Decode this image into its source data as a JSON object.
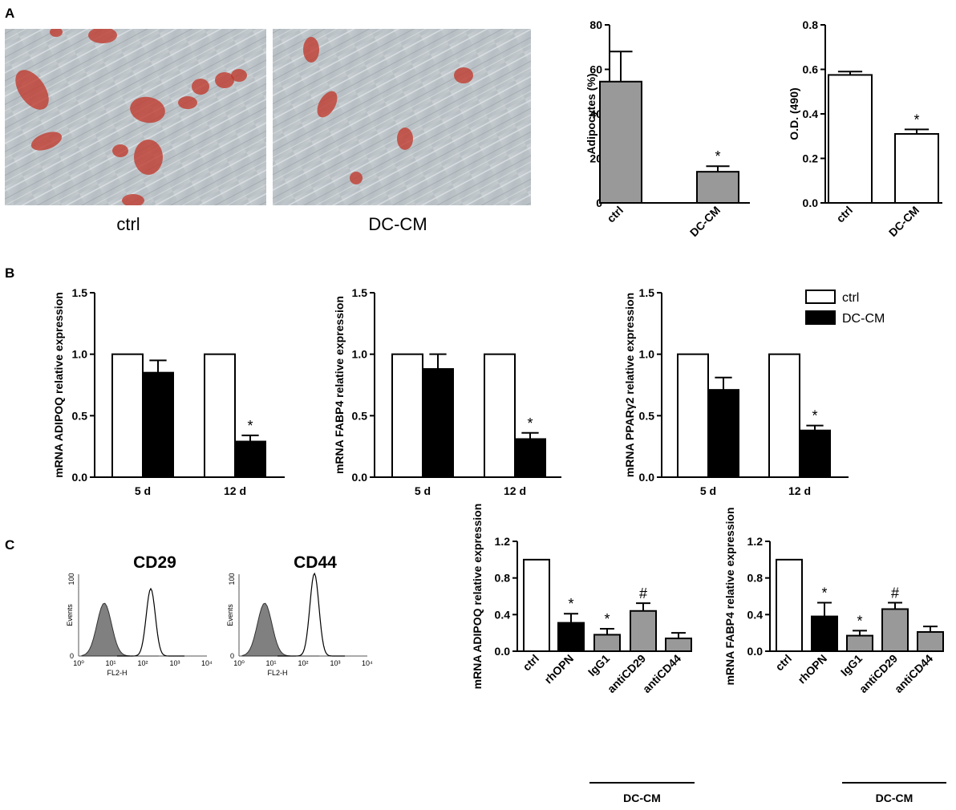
{
  "panel_labels": [
    "A",
    "B",
    "C"
  ],
  "photos": {
    "captions": [
      "ctrl",
      "DC-CM"
    ],
    "stain_color": "#c0392b"
  },
  "histograms": {
    "titles": [
      "CD29",
      "CD44"
    ],
    "ylabel": "Events",
    "xlabel": "FL2-H",
    "y_tick_labels": [
      "0",
      "100"
    ],
    "x_tick_labels": [
      "10⁰",
      "10¹",
      "10²",
      "10³",
      "10⁴"
    ],
    "fill_color": "#808080"
  },
  "legend": {
    "entries": [
      {
        "label": "ctrl",
        "fill": "#ffffff"
      },
      {
        "label": "DC-CM",
        "fill": "#000000"
      }
    ]
  },
  "chart_data": [
    {
      "id": "A1",
      "type": "bar",
      "categories": [
        "ctrl",
        "DC-CM"
      ],
      "values": [
        54.5,
        14
      ],
      "errors": [
        13.5,
        2.5
      ],
      "annotations": [
        "",
        "*"
      ],
      "fills": [
        "#999999",
        "#999999"
      ],
      "ylabel": "Adipocytes (%)",
      "ylim": [
        0,
        80
      ],
      "yticks": [
        "0",
        "20",
        "40",
        "60",
        "80"
      ]
    },
    {
      "id": "A2",
      "type": "bar",
      "categories": [
        "ctrl",
        "DC-CM"
      ],
      "values": [
        0.575,
        0.31
      ],
      "errors": [
        0.015,
        0.02
      ],
      "annotations": [
        "",
        "*"
      ],
      "fills": [
        "#ffffff",
        "#ffffff"
      ],
      "ylabel": "O.D. (490)",
      "ylim": [
        0,
        0.8
      ],
      "yticks": [
        "0.0",
        "0.2",
        "0.4",
        "0.6",
        "0.8"
      ]
    },
    {
      "id": "B1",
      "type": "bar",
      "categories": [
        "5 d",
        "12 d"
      ],
      "series": [
        {
          "name": "ctrl",
          "values": [
            1.0,
            1.0
          ],
          "errors": [
            0,
            0
          ],
          "annotations": [
            "",
            ""
          ]
        },
        {
          "name": "DC-CM",
          "values": [
            0.85,
            0.29
          ],
          "errors": [
            0.1,
            0.05
          ],
          "annotations": [
            "",
            "*"
          ]
        }
      ],
      "ylabel": "mRNA ADIPOQ relative expression",
      "ylim": [
        0,
        1.5
      ],
      "yticks": [
        "0.0",
        "0.5",
        "1.0",
        "1.5"
      ]
    },
    {
      "id": "B2",
      "type": "bar",
      "categories": [
        "5 d",
        "12 d"
      ],
      "series": [
        {
          "name": "ctrl",
          "values": [
            1.0,
            1.0
          ],
          "errors": [
            0,
            0
          ],
          "annotations": [
            "",
            ""
          ]
        },
        {
          "name": "DC-CM",
          "values": [
            0.88,
            0.31
          ],
          "errors": [
            0.12,
            0.05
          ],
          "annotations": [
            "",
            "*"
          ]
        }
      ],
      "ylabel": "mRNA FABP4 relative expression",
      "ylim": [
        0,
        1.5
      ],
      "yticks": [
        "0.0",
        "0.5",
        "1.0",
        "1.5"
      ]
    },
    {
      "id": "B3",
      "type": "bar",
      "categories": [
        "5 d",
        "12 d"
      ],
      "series": [
        {
          "name": "ctrl",
          "values": [
            1.0,
            1.0
          ],
          "errors": [
            0,
            0
          ],
          "annotations": [
            "",
            ""
          ]
        },
        {
          "name": "DC-CM",
          "values": [
            0.71,
            0.38
          ],
          "errors": [
            0.1,
            0.04
          ],
          "annotations": [
            "",
            "*"
          ]
        }
      ],
      "ylabel": "mRNA PPARγ2 relative expression",
      "ylim": [
        0,
        1.5
      ],
      "yticks": [
        "0.0",
        "0.5",
        "1.0",
        "1.5"
      ]
    },
    {
      "id": "C1",
      "type": "bar",
      "categories": [
        "ctrl",
        "rhOPN",
        "IgG1",
        "antiCD29",
        "antiCD44"
      ],
      "values": [
        1.0,
        0.31,
        0.18,
        0.44,
        0.14
      ],
      "errors": [
        0,
        0.1,
        0.065,
        0.085,
        0.06
      ],
      "annotations": [
        "",
        "*",
        "*",
        "#",
        ""
      ],
      "fills": [
        "#ffffff",
        "#000000",
        "#999999",
        "#999999",
        "#999999"
      ],
      "group_label": "DC-CM",
      "ylabel": "mRNA ADIPOQ relative expression",
      "ylim": [
        0,
        1.2
      ],
      "yticks": [
        "0.0",
        "0.4",
        "0.8",
        "1.2"
      ]
    },
    {
      "id": "C2",
      "type": "bar",
      "categories": [
        "ctrl",
        "rhOPN",
        "IgG1",
        "antiCD29",
        "antiCD44"
      ],
      "values": [
        1.0,
        0.38,
        0.17,
        0.46,
        0.21
      ],
      "errors": [
        0,
        0.15,
        0.055,
        0.07,
        0.06
      ],
      "annotations": [
        "",
        "*",
        "*",
        "#",
        ""
      ],
      "fills": [
        "#ffffff",
        "#000000",
        "#999999",
        "#999999",
        "#999999"
      ],
      "group_label": "DC-CM",
      "ylabel": "mRNA FABP4 relative expression",
      "ylim": [
        0,
        1.2
      ],
      "yticks": [
        "0.0",
        "0.4",
        "0.8",
        "1.2"
      ]
    }
  ]
}
